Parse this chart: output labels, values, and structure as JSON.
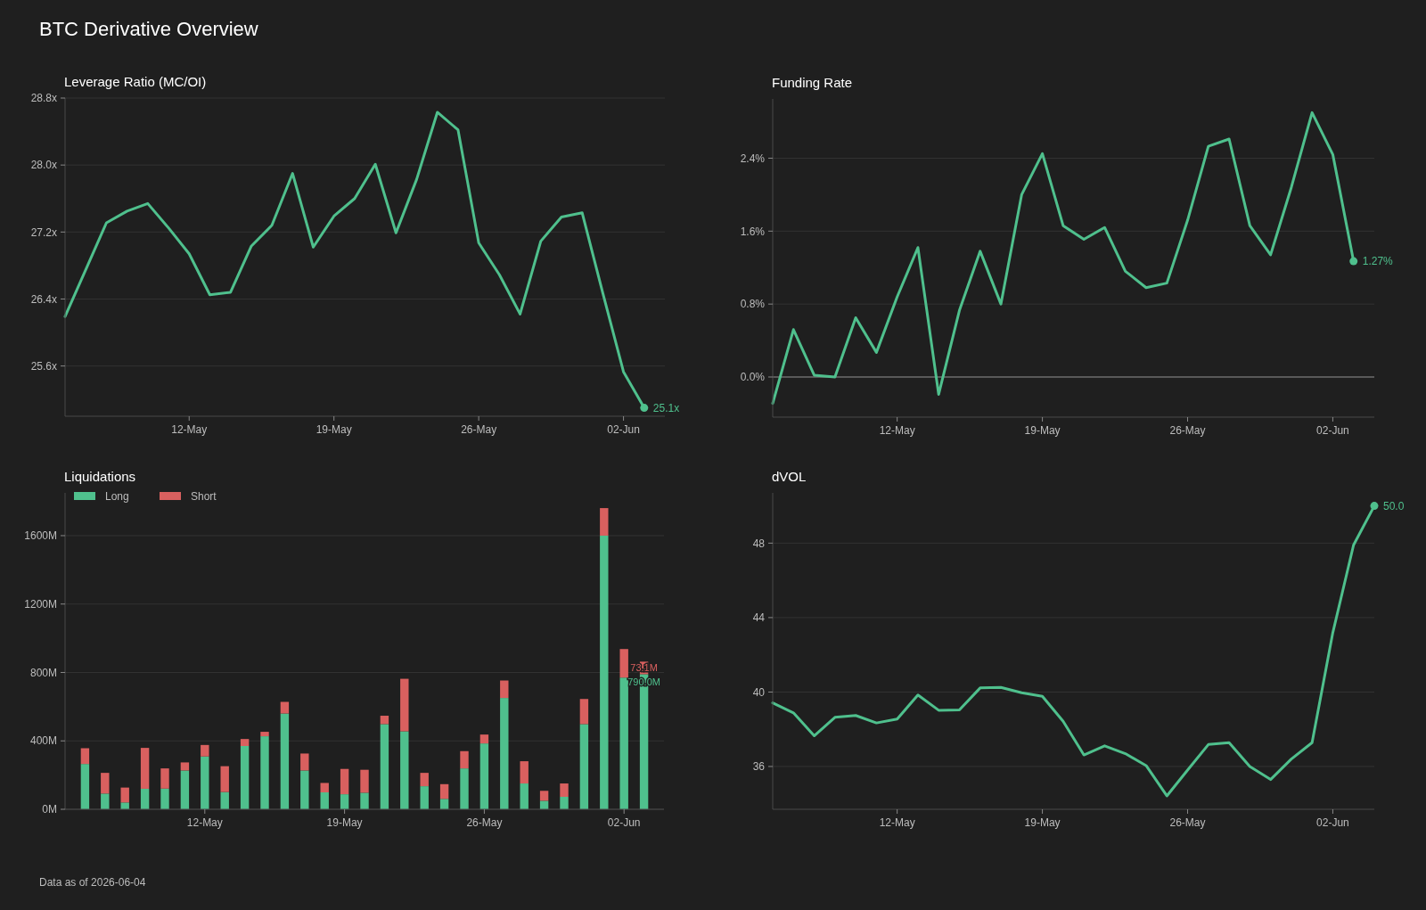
{
  "chart_data": [
    {
      "type": "other",
      "title": "BTC Derivative Overview",
      "annotations": [
        "Data as of 2026-06-04"
      ]
    },
    {
      "type": "line",
      "title": "Leverage Ratio (MC/OI)",
      "x": [
        "2026-05-06",
        "2026-05-07",
        "2026-05-08",
        "2026-05-09",
        "2026-05-10",
        "2026-05-11",
        "2026-05-12",
        "2026-05-13",
        "2026-05-14",
        "2026-05-15",
        "2026-05-16",
        "2026-05-17",
        "2026-05-18",
        "2026-05-19",
        "2026-05-20",
        "2026-05-21",
        "2026-05-22",
        "2026-05-23",
        "2026-05-24",
        "2026-05-25",
        "2026-05-26",
        "2026-05-27",
        "2026-05-28",
        "2026-05-29",
        "2026-05-30",
        "2026-05-31",
        "2026-06-01",
        "2026-06-02",
        "2026-06-03"
      ],
      "series": [
        {
          "color": "#4fc08d",
          "values": [
            26.19,
            26.75,
            27.31,
            27.45,
            27.54,
            27.25,
            26.94,
            26.45,
            26.48,
            27.03,
            27.28,
            27.9,
            27.02,
            27.39,
            27.6,
            28.01,
            27.19,
            27.83,
            28.63,
            28.42,
            27.07,
            26.69,
            26.22,
            27.09,
            27.38,
            27.43,
            26.47,
            25.53,
            25.1
          ],
          "value_labels": [
            null,
            null,
            null,
            null,
            null,
            null,
            null,
            null,
            null,
            null,
            null,
            null,
            null,
            null,
            null,
            null,
            null,
            null,
            null,
            null,
            null,
            null,
            null,
            null,
            null,
            null,
            null,
            null,
            "25.1x"
          ]
        }
      ],
      "xlim": [
        "2026-05-06",
        "2026-06-04"
      ],
      "xticks": [
        {
          "value": "2026-05-12",
          "label": "12-May"
        },
        {
          "value": "2026-05-19",
          "label": "19-May"
        },
        {
          "value": "2026-05-26",
          "label": "26-May"
        },
        {
          "value": "2026-06-02",
          "label": "02-Jun"
        }
      ],
      "ylim": [
        25.0,
        28.8
      ],
      "yticks": [
        {
          "value": 25.6,
          "label": "25.6x"
        },
        {
          "value": 26.4,
          "label": "26.4x"
        },
        {
          "value": 27.2,
          "label": "27.2x"
        },
        {
          "value": 28.0,
          "label": "28.0x"
        },
        {
          "value": 28.8,
          "label": "28.8x"
        }
      ],
      "grid": "y"
    },
    {
      "type": "line",
      "title": "Funding Rate",
      "x": [
        "2026-05-06",
        "2026-05-07",
        "2026-05-08",
        "2026-05-09",
        "2026-05-10",
        "2026-05-11",
        "2026-05-12",
        "2026-05-13",
        "2026-05-14",
        "2026-05-15",
        "2026-05-16",
        "2026-05-17",
        "2026-05-18",
        "2026-05-19",
        "2026-05-20",
        "2026-05-21",
        "2026-05-22",
        "2026-05-23",
        "2026-05-24",
        "2026-05-25",
        "2026-05-26",
        "2026-05-27",
        "2026-05-28",
        "2026-05-29",
        "2026-05-30",
        "2026-05-31",
        "2026-06-01",
        "2026-06-02",
        "2026-06-03"
      ],
      "series": [
        {
          "color": "#4fc08d",
          "values": [
            -0.29,
            0.52,
            0.02,
            0.0,
            0.65,
            0.27,
            0.88,
            1.42,
            -0.19,
            0.73,
            1.38,
            0.8,
            2.0,
            2.45,
            1.66,
            1.51,
            1.64,
            1.16,
            0.98,
            1.03,
            1.72,
            2.53,
            2.61,
            1.66,
            1.34,
            2.08,
            2.9,
            2.44,
            1.27
          ],
          "value_labels": [
            null,
            null,
            null,
            null,
            null,
            null,
            null,
            null,
            null,
            null,
            null,
            null,
            null,
            null,
            null,
            null,
            null,
            null,
            null,
            null,
            null,
            null,
            null,
            null,
            null,
            null,
            null,
            null,
            "1.27%"
          ]
        }
      ],
      "xlim": [
        "2026-05-06",
        "2026-06-04"
      ],
      "xticks": [
        {
          "value": "2026-05-12",
          "label": "12-May"
        },
        {
          "value": "2026-05-19",
          "label": "19-May"
        },
        {
          "value": "2026-05-26",
          "label": "26-May"
        },
        {
          "value": "2026-06-02",
          "label": "02-Jun"
        }
      ],
      "ylim": [
        -0.44,
        3.05
      ],
      "yticks": [
        {
          "value": 0,
          "label": "0.0%"
        },
        {
          "value": 0.8,
          "label": "0.8%"
        },
        {
          "value": 1.6,
          "label": "1.6%"
        },
        {
          "value": 2.4,
          "label": "2.4%"
        }
      ],
      "grid": "y",
      "ref_lines": [
        {
          "axis": "y",
          "value": 0,
          "color": "#8a8a8a"
        }
      ]
    },
    {
      "type": "bar",
      "title": "Liquidations",
      "stacked": true,
      "legend": "top left",
      "x": [
        "2026-05-06",
        "2026-05-07",
        "2026-05-08",
        "2026-05-09",
        "2026-05-10",
        "2026-05-11",
        "2026-05-12",
        "2026-05-13",
        "2026-05-14",
        "2026-05-15",
        "2026-05-16",
        "2026-05-17",
        "2026-05-18",
        "2026-05-19",
        "2026-05-20",
        "2026-05-21",
        "2026-05-22",
        "2026-05-23",
        "2026-05-24",
        "2026-05-25",
        "2026-05-26",
        "2026-05-27",
        "2026-05-28",
        "2026-05-29",
        "2026-05-30",
        "2026-05-31",
        "2026-06-01",
        "2026-06-02",
        "2026-06-03"
      ],
      "series": [
        {
          "name": "Long",
          "color": "#4fc08d",
          "values": [
            265,
            92,
            40,
            120,
            121,
            227,
            309,
            101,
            370,
            427,
            560,
            227,
            99,
            88,
            97,
            498,
            456,
            135,
            61,
            239,
            385,
            651,
            151,
            50,
            73,
            498,
            1600,
            770,
            790.0
          ],
          "value_labels": [
            null,
            null,
            null,
            null,
            null,
            null,
            null,
            null,
            null,
            null,
            null,
            null,
            null,
            null,
            null,
            null,
            null,
            null,
            null,
            null,
            null,
            null,
            null,
            null,
            null,
            null,
            null,
            null,
            "790.0M"
          ]
        },
        {
          "name": "Short",
          "color": "#d9605f",
          "values": [
            92,
            121,
            87,
            239,
            118,
            47,
            67,
            151,
            41,
            26,
            68,
            99,
            55,
            148,
            134,
            49,
            307,
            78,
            86,
            101,
            52,
            102,
            130,
            58,
            78,
            147,
            161,
            167,
            73.1
          ],
          "value_labels": [
            null,
            null,
            null,
            null,
            null,
            null,
            null,
            null,
            null,
            null,
            null,
            null,
            null,
            null,
            null,
            null,
            null,
            null,
            null,
            null,
            null,
            null,
            null,
            null,
            null,
            null,
            null,
            null,
            "73.1M"
          ]
        }
      ],
      "xlim": [
        "2026-05-05",
        "2026-06-04"
      ],
      "xticks": [
        {
          "value": "2026-05-12",
          "label": "12-May"
        },
        {
          "value": "2026-05-19",
          "label": "19-May"
        },
        {
          "value": "2026-05-26",
          "label": "26-May"
        },
        {
          "value": "2026-06-02",
          "label": "02-Jun"
        }
      ],
      "ylim": [
        0,
        1850
      ],
      "yticks": [
        {
          "value": 0,
          "label": "0M"
        },
        {
          "value": 400,
          "label": "400M"
        },
        {
          "value": 800,
          "label": "800M"
        },
        {
          "value": 1200,
          "label": "1200M"
        },
        {
          "value": 1600,
          "label": "1600M"
        }
      ],
      "grid": "y"
    },
    {
      "type": "line",
      "title": "dVOL",
      "x": [
        "2026-05-06",
        "2026-05-07",
        "2026-05-08",
        "2026-05-09",
        "2026-05-10",
        "2026-05-11",
        "2026-05-12",
        "2026-05-13",
        "2026-05-14",
        "2026-05-15",
        "2026-05-16",
        "2026-05-17",
        "2026-05-18",
        "2026-05-19",
        "2026-05-20",
        "2026-05-21",
        "2026-05-22",
        "2026-05-23",
        "2026-05-24",
        "2026-05-25",
        "2026-05-26",
        "2026-05-27",
        "2026-05-28",
        "2026-05-29",
        "2026-05-30",
        "2026-05-31",
        "2026-06-01",
        "2026-06-02",
        "2026-06-03",
        "2026-06-04"
      ],
      "series": [
        {
          "color": "#4fc08d",
          "values": [
            39.42,
            38.88,
            37.65,
            38.64,
            38.74,
            38.34,
            38.55,
            39.84,
            39.02,
            39.04,
            40.22,
            40.25,
            39.96,
            39.77,
            38.43,
            36.62,
            37.11,
            36.69,
            36.05,
            34.42,
            35.81,
            37.18,
            37.28,
            36.0,
            35.3,
            36.4,
            37.28,
            43.19,
            47.9,
            50.0
          ],
          "value_labels": [
            null,
            null,
            null,
            null,
            null,
            null,
            null,
            null,
            null,
            null,
            null,
            null,
            null,
            null,
            null,
            null,
            null,
            null,
            null,
            null,
            null,
            null,
            null,
            null,
            null,
            null,
            null,
            null,
            null,
            "50.0"
          ]
        }
      ],
      "xlim": [
        "2026-05-06",
        "2026-06-04"
      ],
      "xticks": [
        {
          "value": "2026-05-12",
          "label": "12-May"
        },
        {
          "value": "2026-05-19",
          "label": "19-May"
        },
        {
          "value": "2026-05-26",
          "label": "26-May"
        },
        {
          "value": "2026-06-02",
          "label": "02-Jun"
        }
      ],
      "ylim": [
        33.7,
        50.7
      ],
      "yticks": [
        36,
        40,
        44,
        48
      ],
      "grid": "y"
    }
  ]
}
